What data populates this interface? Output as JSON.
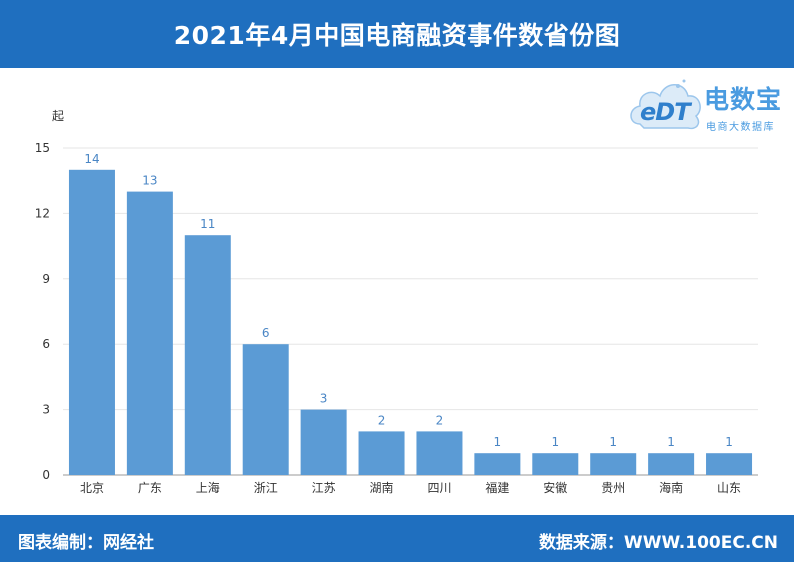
{
  "header": {
    "title": "2021年4月中国电商融资事件数省份图"
  },
  "footer": {
    "left": "图表编制：网经社",
    "right": "数据来源：WWW.100EC.CN"
  },
  "logo": {
    "brand": "电数宝",
    "sub": "电商大数据库",
    "letters": "eDT",
    "icon": "cloud-logo-icon"
  },
  "colors": {
    "accent": "#1f6fbf",
    "bar": "#5b9bd5",
    "label": "#4a86c5",
    "logo": "#4a9be0"
  },
  "chart_data": {
    "type": "bar",
    "title": "2021年4月中国电商融资事件数省份图",
    "ylabel": "起",
    "xlabel": "",
    "ylim": [
      0,
      15
    ],
    "yticks": [
      0,
      3,
      6,
      9,
      12,
      15
    ],
    "grid": true,
    "categories": [
      "北京",
      "广东",
      "上海",
      "浙江",
      "江苏",
      "湖南",
      "四川",
      "福建",
      "安徽",
      "贵州",
      "海南",
      "山东"
    ],
    "values": [
      14,
      13,
      11,
      6,
      3,
      2,
      2,
      1,
      1,
      1,
      1,
      1
    ]
  }
}
